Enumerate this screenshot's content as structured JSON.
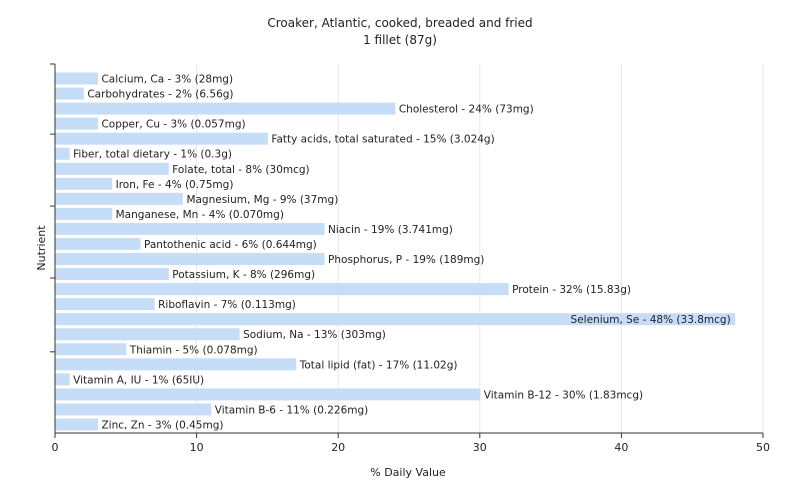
{
  "chart_data": {
    "type": "bar",
    "orientation": "horizontal",
    "title": "Croaker, Atlantic, cooked, breaded and fried",
    "subtitle": "1 fillet (87g)",
    "xlabel": "% Daily Value",
    "ylabel": "Nutrient",
    "xlim": [
      0,
      50
    ],
    "xticks": [
      0,
      10,
      20,
      30,
      40,
      50
    ],
    "grid": true,
    "bar_color": "#c6ddf7",
    "categories": [
      "Calcium, Ca",
      "Carbohydrates",
      "Cholesterol",
      "Copper, Cu",
      "Fatty acids, total saturated",
      "Fiber, total dietary",
      "Folate, total",
      "Iron, Fe",
      "Magnesium, Mg",
      "Manganese, Mn",
      "Niacin",
      "Pantothenic acid",
      "Phosphorus, P",
      "Potassium, K",
      "Protein",
      "Riboflavin",
      "Selenium, Se",
      "Sodium, Na",
      "Thiamin",
      "Total lipid (fat)",
      "Vitamin A, IU",
      "Vitamin B-12",
      "Vitamin B-6",
      "Zinc, Zn"
    ],
    "values": [
      3,
      2,
      24,
      3,
      15,
      1,
      8,
      4,
      9,
      4,
      19,
      6,
      19,
      8,
      32,
      7,
      48,
      13,
      5,
      17,
      1,
      30,
      11,
      3
    ],
    "labels": [
      "Calcium, Ca - 3% (28mg)",
      "Carbohydrates - 2% (6.56g)",
      "Cholesterol - 24% (73mg)",
      "Copper, Cu - 3% (0.057mg)",
      "Fatty acids, total saturated - 15% (3.024g)",
      "Fiber, total dietary - 1% (0.3g)",
      "Folate, total - 8% (30mcg)",
      "Iron, Fe - 4% (0.75mg)",
      "Magnesium, Mg - 9% (37mg)",
      "Manganese, Mn - 4% (0.070mg)",
      "Niacin - 19% (3.741mg)",
      "Pantothenic acid - 6% (0.644mg)",
      "Phosphorus, P - 19% (189mg)",
      "Potassium, K - 8% (296mg)",
      "Protein - 32% (15.83g)",
      "Riboflavin - 7% (0.113mg)",
      "Selenium, Se - 48% (33.8mcg)",
      "Sodium, Na - 13% (303mg)",
      "Thiamin - 5% (0.078mg)",
      "Total lipid (fat) - 17% (11.02g)",
      "Vitamin A, IU - 1% (65IU)",
      "Vitamin B-12 - 30% (1.83mcg)",
      "Vitamin B-6 - 11% (0.226mg)",
      "Zinc, Zn - 3% (0.45mg)"
    ]
  }
}
